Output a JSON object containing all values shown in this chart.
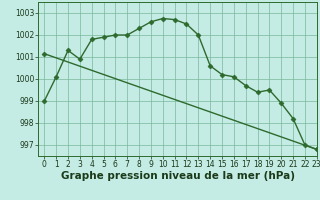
{
  "curve_x": [
    0,
    1,
    2,
    3,
    4,
    5,
    6,
    7,
    8,
    9,
    10,
    11,
    12,
    13,
    14,
    15,
    16,
    17,
    18,
    19,
    20,
    21,
    22,
    23
  ],
  "curve_y": [
    999.0,
    1000.1,
    1001.3,
    1000.9,
    1001.8,
    1001.9,
    1002.0,
    1002.0,
    1002.3,
    1002.6,
    1002.75,
    1002.7,
    1002.5,
    1002.0,
    1000.6,
    1000.2,
    1000.1,
    999.7,
    999.4,
    999.5,
    998.9,
    998.2,
    997.0,
    996.8
  ],
  "line_x": [
    0,
    23
  ],
  "line_y": [
    1001.15,
    996.8
  ],
  "line_color": "#2d6a2d",
  "curve_color": "#2d6a2d",
  "bg_color": "#c5ebe5",
  "grid_color": "#7ab89a",
  "xlabel": "Graphe pression niveau de la mer (hPa)",
  "xlim": [
    -0.5,
    23
  ],
  "ylim": [
    996.5,
    1003.5
  ],
  "yticks": [
    997,
    998,
    999,
    1000,
    1001,
    1002,
    1003
  ],
  "xticks": [
    0,
    1,
    2,
    3,
    4,
    5,
    6,
    7,
    8,
    9,
    10,
    11,
    12,
    13,
    14,
    15,
    16,
    17,
    18,
    19,
    20,
    21,
    22,
    23
  ],
  "tick_fontsize": 5.5,
  "xlabel_fontsize": 7.5,
  "marker": "D",
  "markersize": 2.5,
  "linewidth": 1.0
}
